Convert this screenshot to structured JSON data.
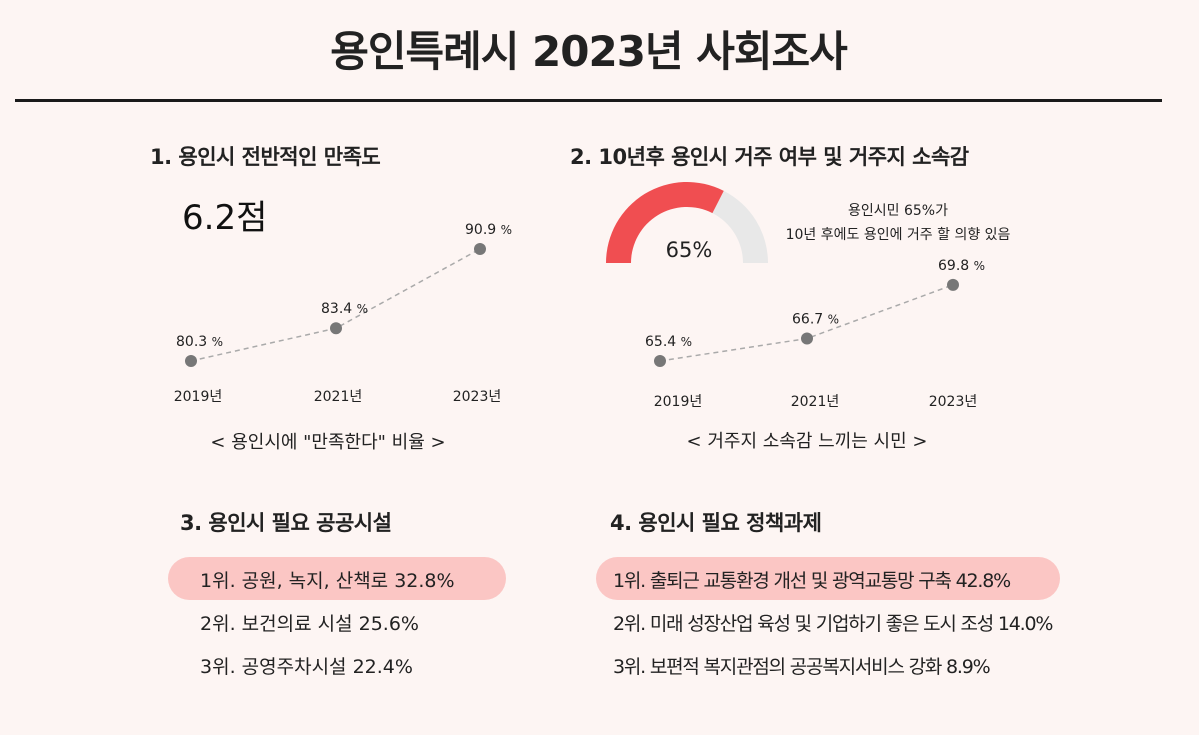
{
  "title": "용인특례시 2023년 사회조사",
  "colors": {
    "background": "#fdf5f3",
    "gauge_fill": "#f04e51",
    "gauge_track": "#e8e8e8",
    "highlight": "#fbc6c4",
    "point": "#777777",
    "line": "#aaaaaa"
  },
  "section1": {
    "heading": "1. 용인시 전반적인 만족도",
    "score": "6.2점",
    "caption": "< 용인시에 \"만족한다\" 비율 >"
  },
  "section2": {
    "heading": "2. 10년후 용인시 거주 여부 및 거주지 소속감",
    "gauge_label": "65%",
    "note_line1": "용인시민 65%가",
    "note_line2": "10년 후에도 용인에 거주 할 의향 있음",
    "caption": "< 거주지 소속감 느끼는 시민 >"
  },
  "section3": {
    "heading": "3. 용인시 필요 공공시설",
    "items": [
      {
        "label": "1위. 공원, 녹지, 산책로 32.8%"
      },
      {
        "label": "2위. 보건의료 시설 25.6%"
      },
      {
        "label": "3위. 공영주차시설 22.4%"
      }
    ]
  },
  "section4": {
    "heading": "4. 용인시 필요 정책과제",
    "items": [
      {
        "label": "1위. 출퇴근 교통환경 개선 및 광역교통망 구축 42.8%"
      },
      {
        "label": "2위. 미래 성장산업 육성 및 기업하기 좋은 도시 조성 14.0%"
      },
      {
        "label": "3위. 보편적 복지관점의 공공복지서비스 강화 8.9%"
      }
    ]
  },
  "chart_data": [
    {
      "type": "line",
      "categories": [
        "2019년",
        "2021년",
        "2023년"
      ],
      "values": [
        80.3,
        83.4,
        90.9
      ],
      "unit": "%",
      "title": "< 용인시에 \"만족한다\" 비율 >",
      "line_style": "dashed",
      "grid": false
    },
    {
      "type": "line",
      "categories": [
        "2019년",
        "2021년",
        "2023년"
      ],
      "values": [
        65.4,
        66.7,
        69.8
      ],
      "unit": "%",
      "title": "< 거주지 소속감 느끼는 시민 >",
      "line_style": "dashed",
      "grid": false
    },
    {
      "type": "gauge",
      "value": 65,
      "max": 100,
      "label": "65%"
    }
  ]
}
